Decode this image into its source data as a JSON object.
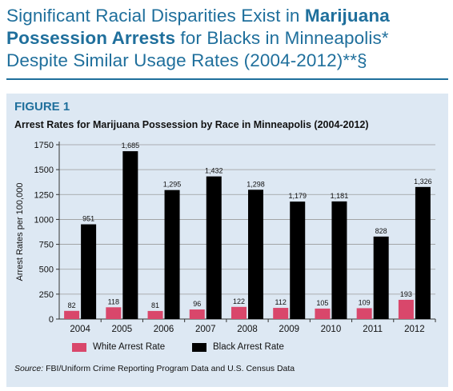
{
  "headline": {
    "part1": "Significant Racial Disparities Exist in ",
    "bold1": "Marijuana",
    "bold2": "Possession Arrests",
    "part2": " for Blacks in Minneapolis*",
    "line3": "Despite Similar Usage Rates (2004-2012)**§"
  },
  "figure_label": "FIGURE 1",
  "source": {
    "prefix": "Source:",
    "text": " FBI/Uniform Crime Reporting Program Data and U.S. Census Data"
  },
  "colors": {
    "accent": "#1f6f9c",
    "panel_bg": "#dde8f3",
    "white_series": "#d9476b",
    "black_series": "#000000"
  },
  "chart_data": {
    "type": "bar",
    "title": "Arrest Rates for Marijuana Possession by Race in Minneapolis (2004-2012)",
    "xlabel": "",
    "ylabel": "Arrest Rates per 100,000",
    "categories": [
      "2004",
      "2005",
      "2006",
      "2007",
      "2008",
      "2009",
      "2010",
      "2011",
      "2012"
    ],
    "ylim": [
      0,
      1750
    ],
    "yticks": [
      0,
      250,
      500,
      750,
      1000,
      1250,
      1500,
      1750
    ],
    "ytick_labels": [
      "0",
      "250",
      "500",
      "750",
      "1000",
      "1250",
      "1500",
      "1750"
    ],
    "grid": true,
    "legend_position": "bottom",
    "series": [
      {
        "name": "White Arrest Rate",
        "color": "#d9476b",
        "values": [
          82,
          118,
          81,
          96,
          122,
          112,
          105,
          109,
          193
        ],
        "labels": [
          "82",
          "118",
          "81",
          "96",
          "122",
          "112",
          "105",
          "109",
          "193"
        ]
      },
      {
        "name": "Black Arrest Rate",
        "color": "#000000",
        "values": [
          951,
          1685,
          1295,
          1432,
          1298,
          1179,
          1181,
          828,
          1326
        ],
        "labels": [
          "951",
          "1,685",
          "1,295",
          "1,432",
          "1,298",
          "1,179",
          "1,181",
          "828",
          "1,326"
        ]
      }
    ]
  }
}
